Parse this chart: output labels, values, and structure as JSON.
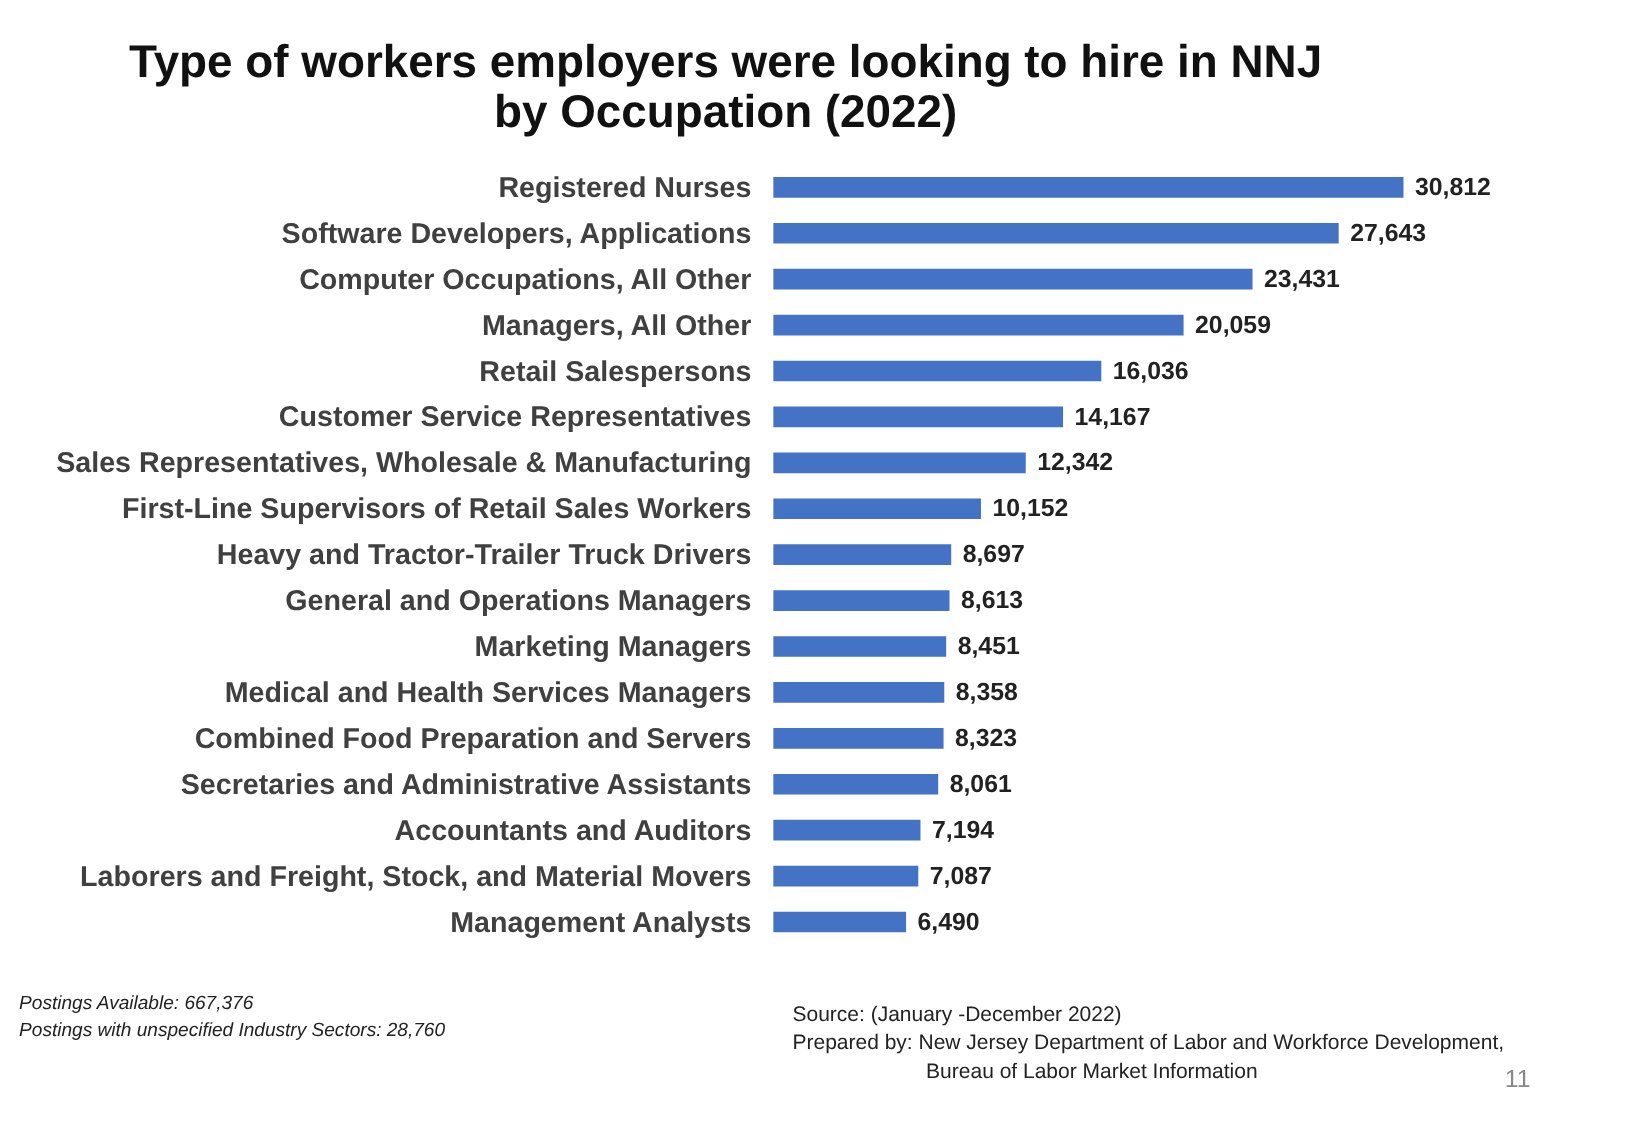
{
  "chart_data": {
    "type": "bar",
    "orientation": "horizontal",
    "title": "Type of workers employers were looking to hire in NNJ\nby Occupation (2022)",
    "categories": [
      "Registered Nurses",
      "Software Developers, Applications",
      "Computer Occupations, All Other",
      "Managers, All Other",
      "Retail Salespersons",
      "Customer Service Representatives",
      "Sales Representatives, Wholesale & Manufacturing",
      "First-Line Supervisors of Retail Sales Workers",
      "Heavy and Tractor-Trailer Truck Drivers",
      "General and Operations Managers",
      "Marketing Managers",
      "Medical and Health Services Managers",
      "Combined Food Preparation and Servers",
      "Secretaries and Administrative Assistants",
      "Accountants and Auditors",
      "Laborers and Freight, Stock, and Material Movers",
      "Management Analysts"
    ],
    "values": [
      30812,
      27643,
      23431,
      20059,
      16036,
      14167,
      12342,
      10152,
      8697,
      8613,
      8451,
      8358,
      8323,
      8061,
      7194,
      7087,
      6490
    ],
    "color": "#4472c4",
    "value_labels": [
      "30,812",
      "27,643",
      "23,431",
      "20,059",
      "16,036",
      "14,167",
      "12,342",
      "10,152",
      "8,697",
      "8,613",
      "8,451",
      "8,358",
      "8,323",
      "8,061",
      "7,194",
      "7,087",
      "6,490"
    ],
    "annotations": [
      "Postings Available: 667,376",
      "Postings with unspecified Industry Sectors: 28,760",
      "Source: (January -December 2022)",
      "Prepared by: New Jersey Department of Labor and Workforce Development,",
      "Bureau of Labor Market Information",
      "11"
    ]
  }
}
